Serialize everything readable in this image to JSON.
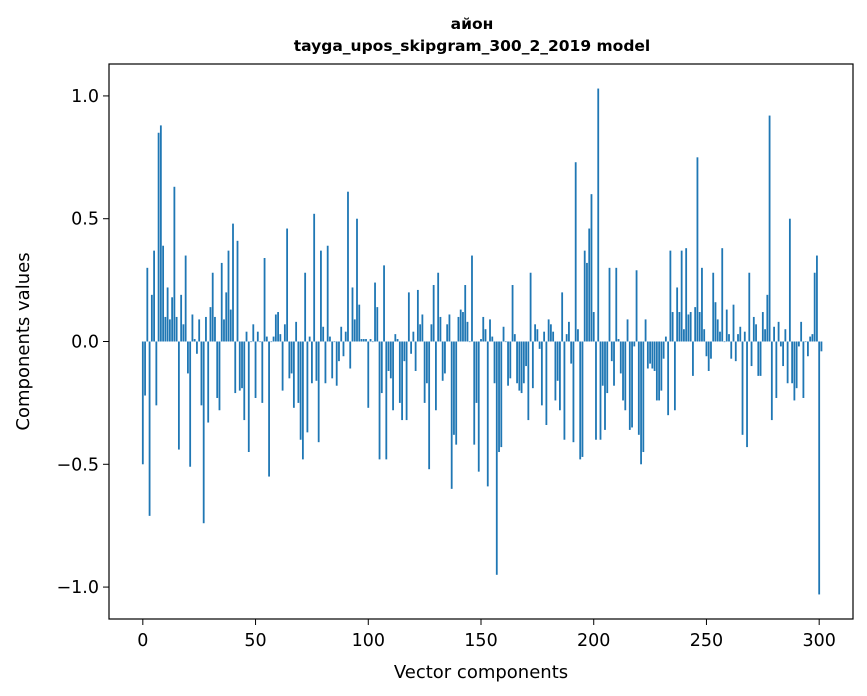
{
  "chart_data": {
    "type": "bar",
    "title": "айон",
    "subtitle": "tayga_upos_skipgram_300_2_2019 model",
    "xlabel": "Vector components",
    "ylabel": "Components values",
    "xlim": [
      -15,
      315
    ],
    "ylim": [
      -1.13,
      1.13
    ],
    "xticks": [
      0,
      50,
      100,
      150,
      200,
      250,
      300
    ],
    "xtick_labels": [
      "0",
      "50",
      "100",
      "150",
      "200",
      "250",
      "300"
    ],
    "yticks": [
      -1.0,
      -0.5,
      0.0,
      0.5,
      1.0
    ],
    "ytick_labels": [
      "−1.0",
      "−0.5",
      "0.0",
      "0.5",
      "1.0"
    ],
    "bar_color": "#1f77b4",
    "grid": false,
    "legend": "none",
    "values": [
      -0.5,
      -0.22,
      0.3,
      -0.71,
      0.19,
      0.37,
      -0.26,
      0.85,
      0.88,
      0.39,
      0.1,
      0.22,
      0.09,
      0.18,
      0.63,
      0.1,
      -0.44,
      0.19,
      0.07,
      0.35,
      -0.13,
      -0.51,
      0.11,
      0.01,
      -0.05,
      0.09,
      -0.26,
      -0.74,
      0.1,
      -0.33,
      0.14,
      0.28,
      0.1,
      -0.23,
      -0.28,
      0.32,
      0.09,
      0.2,
      0.37,
      0.13,
      0.48,
      -0.21,
      0.41,
      -0.2,
      -0.19,
      -0.32,
      0.04,
      -0.45,
      0.0,
      0.07,
      -0.23,
      0.04,
      0.0,
      -0.25,
      0.34,
      0.02,
      -0.55,
      0.0,
      0.02,
      0.11,
      0.12,
      0.03,
      -0.2,
      0.07,
      0.46,
      -0.15,
      -0.13,
      -0.27,
      0.08,
      -0.25,
      -0.4,
      -0.48,
      0.28,
      -0.37,
      0.02,
      -0.17,
      0.52,
      -0.16,
      -0.41,
      0.37,
      0.06,
      -0.17,
      0.39,
      0.02,
      -0.15,
      0.0,
      -0.18,
      -0.08,
      0.06,
      -0.06,
      0.04,
      0.61,
      -0.11,
      0.22,
      0.09,
      0.5,
      0.15,
      0.01,
      0.01,
      0.01,
      -0.27,
      0.01,
      0.0,
      0.24,
      0.14,
      -0.48,
      -0.21,
      0.31,
      -0.48,
      -0.12,
      -0.15,
      -0.28,
      0.03,
      0.01,
      -0.25,
      -0.32,
      -0.08,
      -0.32,
      0.2,
      -0.05,
      0.04,
      -0.12,
      0.21,
      0.07,
      0.11,
      -0.25,
      -0.17,
      -0.52,
      0.07,
      0.23,
      -0.28,
      0.28,
      0.1,
      -0.16,
      -0.13,
      0.07,
      0.11,
      -0.6,
      -0.38,
      -0.42,
      0.1,
      0.13,
      0.12,
      0.23,
      0.08,
      0.0,
      0.35,
      -0.42,
      -0.25,
      -0.53,
      0.01,
      0.1,
      0.05,
      -0.59,
      0.09,
      0.02,
      -0.17,
      -0.95,
      -0.45,
      -0.43,
      0.06,
      0.0,
      -0.18,
      -0.15,
      0.23,
      0.03,
      -0.17,
      -0.2,
      -0.21,
      -0.17,
      -0.1,
      -0.32,
      0.28,
      -0.19,
      0.07,
      0.05,
      -0.03,
      -0.26,
      0.04,
      -0.34,
      0.09,
      0.07,
      0.04,
      -0.24,
      -0.16,
      -0.28,
      0.2,
      -0.4,
      0.03,
      0.08,
      -0.09,
      -0.41,
      0.73,
      0.05,
      -0.48,
      -0.47,
      0.37,
      0.32,
      0.46,
      0.6,
      0.12,
      -0.4,
      1.03,
      -0.4,
      -0.18,
      -0.36,
      -0.21,
      0.3,
      -0.08,
      -0.18,
      0.3,
      0.01,
      -0.13,
      -0.24,
      -0.28,
      0.09,
      -0.36,
      -0.35,
      -0.02,
      0.29,
      -0.38,
      -0.5,
      -0.45,
      0.09,
      -0.11,
      -0.09,
      -0.11,
      -0.12,
      -0.24,
      -0.24,
      -0.2,
      -0.07,
      0.02,
      -0.3,
      0.37,
      0.12,
      -0.28,
      0.22,
      0.12,
      0.37,
      0.05,
      0.38,
      0.11,
      0.12,
      -0.14,
      0.14,
      0.75,
      0.12,
      0.3,
      0.05,
      -0.06,
      -0.12,
      -0.07,
      0.28,
      0.16,
      0.09,
      0.04,
      0.38,
      0.0,
      0.13,
      0.03,
      -0.07,
      0.15,
      -0.08,
      0.03,
      0.06,
      -0.38,
      0.04,
      -0.43,
      0.28,
      -0.1,
      0.1,
      0.07,
      -0.14,
      -0.14,
      0.12,
      0.05,
      0.19,
      0.92,
      -0.32,
      0.06,
      -0.23,
      0.08,
      -0.02,
      -0.1,
      0.05,
      -0.17,
      0.5,
      -0.17,
      -0.24,
      -0.19,
      -0.02,
      0.08,
      -0.23,
      0.0,
      -0.06,
      0.02,
      0.03,
      0.28,
      0.35,
      -1.03,
      -0.04
    ]
  }
}
